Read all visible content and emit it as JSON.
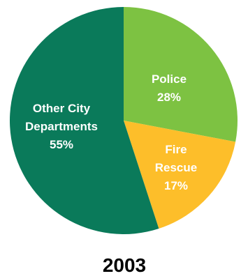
{
  "chart_data": {
    "type": "pie",
    "title": "2003",
    "slices": [
      {
        "name": "Police",
        "value": 28,
        "label_lines": [
          "Police",
          "28%"
        ],
        "color": "#7DC242"
      },
      {
        "name": "Fire Rescue",
        "value": 17,
        "label_lines": [
          "Fire",
          "Rescue",
          "17%"
        ],
        "color": "#FDBE2A"
      },
      {
        "name": "Other City Departments",
        "value": 55,
        "label_lines": [
          "Other City",
          "Departments",
          "55%"
        ],
        "color": "#0A7A5A"
      }
    ]
  }
}
